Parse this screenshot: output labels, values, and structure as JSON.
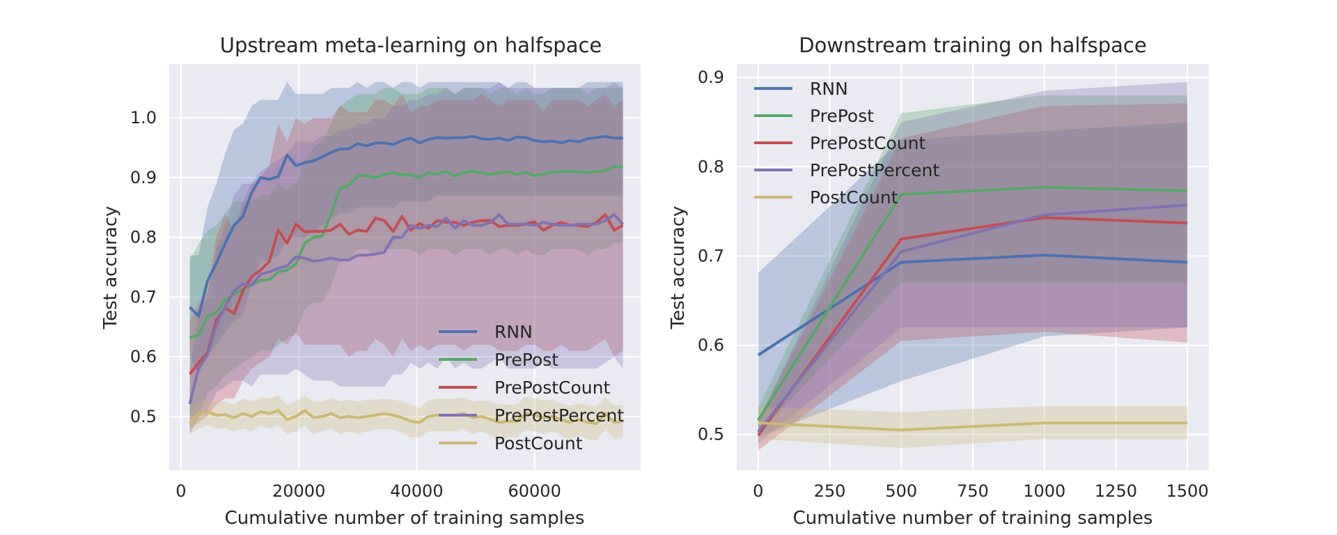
{
  "colors": {
    "RNN": "#4C72B0",
    "PrePost": "#55A868",
    "PrePostCount": "#C44E52",
    "PrePostPercent": "#8172B2",
    "PostCount": "#CCB974",
    "plot_background": "#EAEAF2",
    "grid": "#FFFFFF"
  },
  "chart_data": [
    {
      "type": "line",
      "title": "Upstream meta-learning on halfspace",
      "xlabel": "Cumulative number of training samples",
      "ylabel": "Test accuracy",
      "xlim": [
        -2000,
        78000
      ],
      "ylim": [
        0.41,
        1.09
      ],
      "xticks": [
        0,
        20000,
        40000,
        60000
      ],
      "xtick_labels": [
        "0",
        "20000",
        "40000",
        "60000"
      ],
      "yticks": [
        0.5,
        0.6,
        0.7,
        0.8,
        0.9,
        1.0
      ],
      "ytick_labels": [
        "0.5",
        "0.6",
        "0.7",
        "0.8",
        "0.9",
        "1.0"
      ],
      "grid": true,
      "legend_position": "lower-right",
      "x": [
        1500,
        3000,
        4500,
        6000,
        7500,
        9000,
        10500,
        12000,
        13500,
        15000,
        16500,
        18000,
        19500,
        21000,
        22500,
        24000,
        25500,
        27000,
        28500,
        30000,
        31500,
        33000,
        34500,
        36000,
        37500,
        39000,
        40500,
        42000,
        43500,
        45000,
        46500,
        48000,
        49500,
        51000,
        52500,
        54000,
        55500,
        57000,
        58500,
        60000,
        61500,
        63000,
        64500,
        66000,
        67500,
        69000,
        70500,
        72000,
        73500,
        75000
      ],
      "series": [
        {
          "name": "RNN",
          "values": [
            0.683,
            0.668,
            0.727,
            0.757,
            0.79,
            0.82,
            0.835,
            0.875,
            0.9,
            0.897,
            0.902,
            0.938,
            0.92,
            0.925,
            0.928,
            0.935,
            0.942,
            0.948,
            0.948,
            0.957,
            0.953,
            0.958,
            0.958,
            0.955,
            0.962,
            0.966,
            0.958,
            0.964,
            0.967,
            0.966,
            0.967,
            0.967,
            0.969,
            0.965,
            0.964,
            0.966,
            0.962,
            0.968,
            0.967,
            0.962,
            0.96,
            0.961,
            0.958,
            0.962,
            0.96,
            0.965,
            0.967,
            0.969,
            0.966,
            0.966
          ],
          "lower": [
            0.6,
            0.57,
            0.6,
            0.62,
            0.64,
            0.66,
            0.67,
            0.72,
            0.76,
            0.76,
            0.77,
            0.8,
            0.8,
            0.8,
            0.81,
            0.82,
            0.83,
            0.84,
            0.84,
            0.85,
            0.85,
            0.85,
            0.85,
            0.85,
            0.86,
            0.86,
            0.86,
            0.86,
            0.87,
            0.87,
            0.87,
            0.87,
            0.87,
            0.87,
            0.87,
            0.87,
            0.87,
            0.87,
            0.87,
            0.87,
            0.87,
            0.87,
            0.87,
            0.87,
            0.87,
            0.87,
            0.87,
            0.87,
            0.87,
            0.87
          ],
          "upper": [
            0.77,
            0.77,
            0.85,
            0.89,
            0.94,
            0.98,
            0.99,
            1.02,
            1.03,
            1.03,
            1.03,
            1.06,
            1.04,
            1.04,
            1.04,
            1.04,
            1.05,
            1.05,
            1.05,
            1.06,
            1.05,
            1.06,
            1.06,
            1.05,
            1.06,
            1.06,
            1.05,
            1.06,
            1.06,
            1.06,
            1.06,
            1.06,
            1.06,
            1.06,
            1.06,
            1.06,
            1.05,
            1.06,
            1.06,
            1.05,
            1.05,
            1.05,
            1.05,
            1.05,
            1.05,
            1.06,
            1.06,
            1.06,
            1.06,
            1.06
          ]
        },
        {
          "name": "PrePost",
          "values": [
            0.632,
            0.636,
            0.668,
            0.673,
            0.695,
            0.705,
            0.713,
            0.72,
            0.728,
            0.729,
            0.742,
            0.745,
            0.755,
            0.79,
            0.8,
            0.802,
            0.84,
            0.882,
            0.887,
            0.903,
            0.903,
            0.9,
            0.905,
            0.908,
            0.905,
            0.905,
            0.9,
            0.908,
            0.906,
            0.91,
            0.903,
            0.908,
            0.911,
            0.908,
            0.905,
            0.908,
            0.91,
            0.905,
            0.909,
            0.903,
            0.906,
            0.909,
            0.91,
            0.91,
            0.91,
            0.908,
            0.91,
            0.912,
            0.918,
            0.918
          ],
          "lower": [
            0.5,
            0.5,
            0.54,
            0.55,
            0.57,
            0.58,
            0.59,
            0.6,
            0.61,
            0.61,
            0.62,
            0.63,
            0.64,
            0.68,
            0.69,
            0.69,
            0.72,
            0.76,
            0.76,
            0.78,
            0.78,
            0.77,
            0.78,
            0.78,
            0.78,
            0.78,
            0.77,
            0.78,
            0.78,
            0.78,
            0.77,
            0.78,
            0.78,
            0.78,
            0.77,
            0.78,
            0.78,
            0.77,
            0.78,
            0.77,
            0.77,
            0.78,
            0.78,
            0.78,
            0.78,
            0.77,
            0.78,
            0.78,
            0.79,
            0.79
          ],
          "upper": [
            0.76,
            0.79,
            0.81,
            0.82,
            0.84,
            0.86,
            0.86,
            0.86,
            0.87,
            0.87,
            0.89,
            0.88,
            0.89,
            0.93,
            0.95,
            0.96,
            0.99,
            1.02,
            1.03,
            1.04,
            1.04,
            1.04,
            1.05,
            1.05,
            1.04,
            1.04,
            1.04,
            1.05,
            1.05,
            1.05,
            1.04,
            1.05,
            1.05,
            1.05,
            1.04,
            1.05,
            1.05,
            1.04,
            1.05,
            1.04,
            1.04,
            1.05,
            1.05,
            1.05,
            1.05,
            1.04,
            1.05,
            1.05,
            1.05,
            1.05
          ]
        },
        {
          "name": "PrePostCount",
          "values": [
            0.571,
            0.59,
            0.607,
            0.662,
            0.682,
            0.672,
            0.71,
            0.734,
            0.745,
            0.76,
            0.812,
            0.79,
            0.822,
            0.809,
            0.81,
            0.81,
            0.812,
            0.822,
            0.805,
            0.812,
            0.81,
            0.832,
            0.828,
            0.81,
            0.835,
            0.812,
            0.823,
            0.815,
            0.828,
            0.825,
            0.825,
            0.82,
            0.825,
            0.828,
            0.828,
            0.818,
            0.82,
            0.82,
            0.822,
            0.826,
            0.812,
            0.82,
            0.825,
            0.82,
            0.82,
            0.818,
            0.825,
            0.838,
            0.812,
            0.82
          ],
          "lower": [
            0.48,
            0.49,
            0.5,
            0.52,
            0.53,
            0.53,
            0.56,
            0.58,
            0.59,
            0.6,
            0.63,
            0.62,
            0.64,
            0.62,
            0.62,
            0.62,
            0.62,
            0.62,
            0.6,
            0.61,
            0.61,
            0.63,
            0.62,
            0.6,
            0.63,
            0.61,
            0.62,
            0.61,
            0.62,
            0.62,
            0.62,
            0.61,
            0.62,
            0.62,
            0.62,
            0.61,
            0.61,
            0.61,
            0.62,
            0.62,
            0.61,
            0.61,
            0.62,
            0.61,
            0.61,
            0.61,
            0.62,
            0.63,
            0.6,
            0.61
          ],
          "upper": [
            0.66,
            0.69,
            0.71,
            0.8,
            0.84,
            0.81,
            0.86,
            0.89,
            0.9,
            0.92,
            0.99,
            0.96,
            1.0,
            0.99,
            1.0,
            1.0,
            1.0,
            1.02,
            1.01,
            1.01,
            1.01,
            1.03,
            1.03,
            1.02,
            1.04,
            1.01,
            1.02,
            1.02,
            1.03,
            1.03,
            1.03,
            1.03,
            1.03,
            1.04,
            1.03,
            1.02,
            1.03,
            1.03,
            1.03,
            1.03,
            1.01,
            1.03,
            1.03,
            1.03,
            1.03,
            1.02,
            1.03,
            1.04,
            1.02,
            1.03
          ]
        },
        {
          "name": "PrePostPercent",
          "values": [
            0.521,
            0.582,
            0.603,
            0.653,
            0.684,
            0.71,
            0.722,
            0.72,
            0.738,
            0.742,
            0.748,
            0.752,
            0.767,
            0.765,
            0.76,
            0.762,
            0.765,
            0.762,
            0.762,
            0.77,
            0.77,
            0.772,
            0.775,
            0.8,
            0.8,
            0.82,
            0.815,
            0.82,
            0.818,
            0.832,
            0.815,
            0.828,
            0.82,
            0.82,
            0.825,
            0.838,
            0.822,
            0.822,
            0.822,
            0.82,
            0.825,
            0.822,
            0.82,
            0.82,
            0.822,
            0.822,
            0.822,
            0.828,
            0.838,
            0.822
          ],
          "lower": [
            0.47,
            0.5,
            0.51,
            0.54,
            0.55,
            0.56,
            0.56,
            0.55,
            0.57,
            0.57,
            0.57,
            0.57,
            0.58,
            0.57,
            0.56,
            0.56,
            0.56,
            0.55,
            0.55,
            0.55,
            0.55,
            0.55,
            0.55,
            0.57,
            0.57,
            0.59,
            0.58,
            0.59,
            0.58,
            0.6,
            0.58,
            0.59,
            0.58,
            0.58,
            0.59,
            0.6,
            0.58,
            0.58,
            0.58,
            0.58,
            0.59,
            0.58,
            0.58,
            0.58,
            0.58,
            0.58,
            0.58,
            0.59,
            0.6,
            0.58
          ],
          "upper": [
            0.58,
            0.67,
            0.7,
            0.78,
            0.82,
            0.87,
            0.89,
            0.89,
            0.91,
            0.92,
            0.93,
            0.94,
            0.96,
            0.96,
            0.96,
            0.97,
            0.97,
            0.98,
            0.98,
            0.99,
            0.99,
            1.0,
            1.0,
            1.02,
            1.02,
            1.03,
            1.03,
            1.04,
            1.04,
            1.05,
            1.04,
            1.05,
            1.05,
            1.05,
            1.05,
            1.06,
            1.05,
            1.05,
            1.05,
            1.05,
            1.05,
            1.05,
            1.05,
            1.05,
            1.05,
            1.05,
            1.05,
            1.05,
            1.06,
            1.05
          ]
        },
        {
          "name": "PostCount",
          "values": [
            0.488,
            0.505,
            0.508,
            0.502,
            0.503,
            0.498,
            0.505,
            0.5,
            0.508,
            0.505,
            0.51,
            0.495,
            0.5,
            0.51,
            0.498,
            0.5,
            0.505,
            0.498,
            0.5,
            0.498,
            0.5,
            0.502,
            0.505,
            0.502,
            0.498,
            0.492,
            0.49,
            0.5,
            0.502,
            0.502,
            0.502,
            0.505,
            0.498,
            0.5,
            0.495,
            0.49,
            0.492,
            0.492,
            0.505,
            0.502,
            0.498,
            0.5,
            0.495,
            0.49,
            0.495,
            0.49,
            0.488,
            0.505,
            0.49,
            0.492
          ],
          "lower": [
            0.47,
            0.48,
            0.485,
            0.48,
            0.48,
            0.475,
            0.48,
            0.475,
            0.485,
            0.48,
            0.485,
            0.47,
            0.475,
            0.485,
            0.47,
            0.475,
            0.48,
            0.47,
            0.475,
            0.47,
            0.475,
            0.478,
            0.48,
            0.478,
            0.472,
            0.465,
            0.465,
            0.475,
            0.475,
            0.475,
            0.475,
            0.48,
            0.47,
            0.475,
            0.468,
            0.46,
            0.465,
            0.465,
            0.478,
            0.475,
            0.47,
            0.475,
            0.468,
            0.462,
            0.468,
            0.462,
            0.46,
            0.478,
            0.462,
            0.465
          ],
          "upper": [
            0.51,
            0.525,
            0.53,
            0.525,
            0.525,
            0.52,
            0.53,
            0.525,
            0.532,
            0.53,
            0.535,
            0.52,
            0.525,
            0.535,
            0.525,
            0.525,
            0.532,
            0.525,
            0.528,
            0.525,
            0.528,
            0.528,
            0.53,
            0.528,
            0.525,
            0.52,
            0.515,
            0.527,
            0.53,
            0.53,
            0.53,
            0.532,
            0.525,
            0.527,
            0.525,
            0.52,
            0.52,
            0.52,
            0.533,
            0.53,
            0.527,
            0.528,
            0.522,
            0.518,
            0.522,
            0.52,
            0.516,
            0.532,
            0.518,
            0.52
          ]
        }
      ]
    },
    {
      "type": "line",
      "title": "Downstream training on halfspace",
      "xlabel": "Cumulative number of training samples",
      "ylabel": "Test accuracy",
      "xlim": [
        -75,
        1575
      ],
      "ylim": [
        0.46,
        0.915
      ],
      "xticks": [
        0,
        250,
        500,
        750,
        1000,
        1250,
        1500
      ],
      "xtick_labels": [
        "0",
        "250",
        "500",
        "750",
        "1000",
        "1250",
        "1500"
      ],
      "yticks": [
        0.5,
        0.6,
        0.7,
        0.8,
        0.9
      ],
      "ytick_labels": [
        "0.5",
        "0.6",
        "0.7",
        "0.8",
        "0.9"
      ],
      "grid": true,
      "legend_position": "upper-left",
      "x": [
        0,
        500,
        1000,
        1500
      ],
      "series": [
        {
          "name": "RNN",
          "values": [
            0.589,
            0.693,
            0.701,
            0.693
          ],
          "lower": [
            0.497,
            0.56,
            0.61,
            0.62
          ],
          "upper": [
            0.681,
            0.83,
            0.84,
            0.85
          ]
        },
        {
          "name": "PrePost",
          "values": [
            0.516,
            0.769,
            0.777,
            0.773
          ],
          "lower": [
            0.5,
            0.67,
            0.67,
            0.67
          ],
          "upper": [
            0.53,
            0.86,
            0.88,
            0.88
          ]
        },
        {
          "name": "PrePostCount",
          "values": [
            0.499,
            0.719,
            0.743,
            0.737
          ],
          "lower": [
            0.482,
            0.605,
            0.615,
            0.603
          ],
          "upper": [
            0.515,
            0.832,
            0.868,
            0.871
          ]
        },
        {
          "name": "PrePostPercent",
          "values": [
            0.503,
            0.705,
            0.746,
            0.757
          ],
          "lower": [
            0.49,
            0.62,
            0.62,
            0.62
          ],
          "upper": [
            0.516,
            0.85,
            0.885,
            0.895
          ]
        },
        {
          "name": "PostCount",
          "values": [
            0.513,
            0.505,
            0.513,
            0.513
          ],
          "lower": [
            0.495,
            0.485,
            0.495,
            0.495
          ],
          "upper": [
            0.531,
            0.525,
            0.532,
            0.532
          ]
        }
      ]
    }
  ]
}
